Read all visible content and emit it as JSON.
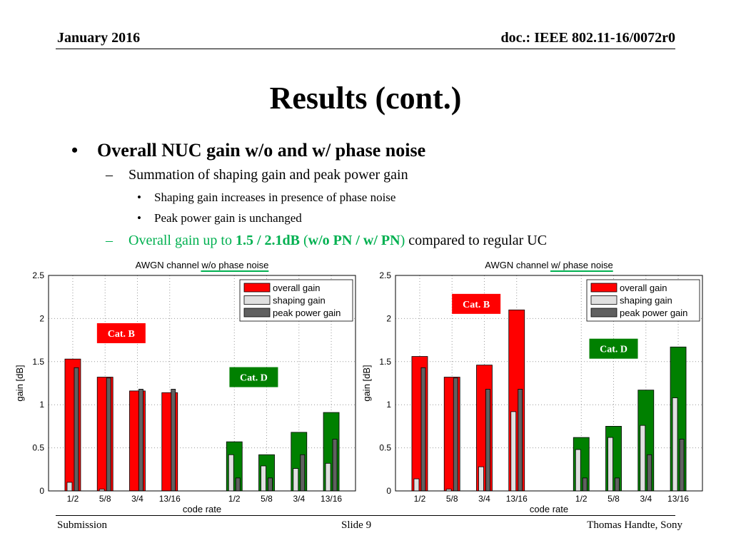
{
  "header": {
    "date": "January 2016",
    "doc": "doc.: IEEE 802.11-16/0072r0"
  },
  "title": "Results (cont.)",
  "bullets": {
    "main": "Overall NUC gain w/o and w/ phase noise",
    "sub1": "Summation of shaping gain and peak power gain",
    "sub1_items": [
      "Shaping gain increases in presence of phase noise",
      "Peak power gain is unchanged"
    ],
    "sub2_prefix": "Overall gain up to ",
    "sub2_value": "1.5 / 2.1dB",
    "sub2_paren_open": " (",
    "sub2_paren_bold": "w/o PN / w/ PN",
    "sub2_paren_close": ")",
    "sub2_suffix": " compared to regular UC"
  },
  "footer": {
    "left": "Submission",
    "center": "Slide 9",
    "right": "Thomas Handte, Sony"
  },
  "colors": {
    "overall_cat_b": "#ff0000",
    "overall_cat_d": "#008000",
    "shaping": "#e0e0e0",
    "peak": "#606060",
    "catb_box": "#ff0000",
    "catd_box": "#008000",
    "underline": "#00b050"
  },
  "chart_data": [
    {
      "type": "bar",
      "title": "AWGN channel w/o phase noise",
      "title_prefix": "AWGN channel ",
      "title_underlined": "w/o phase noise",
      "xlabel": "code rate",
      "ylabel": "gain [dB]",
      "ylim": [
        0,
        2.5
      ],
      "yticks": [
        "0",
        "0.5",
        "1",
        "1.5",
        "2",
        "2.5"
      ],
      "categories": [
        "1/2",
        "5/8",
        "3/4",
        "13/16",
        "",
        "1/2",
        "5/8",
        "3/4",
        "13/16"
      ],
      "legend": {
        "placement": "top-right",
        "entries": [
          "overall gain",
          "shaping gain",
          "peak power gain"
        ]
      },
      "series": [
        {
          "name": "overall gain",
          "values": [
            1.53,
            1.32,
            1.16,
            1.14,
            null,
            0.57,
            0.42,
            0.68,
            0.91
          ]
        },
        {
          "name": "shaping gain",
          "values": [
            0.1,
            0.02,
            0.0,
            0.0,
            null,
            0.42,
            0.29,
            0.26,
            0.32
          ]
        },
        {
          "name": "peak power gain",
          "values": [
            1.43,
            1.31,
            1.18,
            1.18,
            null,
            0.15,
            0.15,
            0.42,
            0.6
          ]
        }
      ],
      "annotations": [
        {
          "text": "Cat. B",
          "kind": "catb",
          "x": 1.5,
          "y": 1.83
        },
        {
          "text": "Cat. D",
          "kind": "catd",
          "x": 5.6,
          "y": 1.32
        }
      ]
    },
    {
      "type": "bar",
      "title": "AWGN channel w/ phase noise",
      "title_prefix": "AWGN channel ",
      "title_underlined": "w/ phase noise",
      "xlabel": "code rate",
      "ylabel": "gain [dB]",
      "ylim": [
        0,
        2.5
      ],
      "yticks": [
        "0",
        "0.5",
        "1",
        "1.5",
        "2",
        "2.5"
      ],
      "categories": [
        "1/2",
        "5/8",
        "3/4",
        "13/16",
        "",
        "1/2",
        "5/8",
        "3/4",
        "13/16"
      ],
      "legend": {
        "placement": "top-right",
        "entries": [
          "overall gain",
          "shaping gain",
          "peak power gain"
        ]
      },
      "series": [
        {
          "name": "overall gain",
          "values": [
            1.56,
            1.32,
            1.46,
            2.1,
            null,
            0.62,
            0.75,
            1.17,
            1.67
          ]
        },
        {
          "name": "shaping gain",
          "values": [
            0.14,
            0.02,
            0.28,
            0.92,
            null,
            0.48,
            0.62,
            0.76,
            1.08
          ]
        },
        {
          "name": "peak power gain",
          "values": [
            1.43,
            1.31,
            1.18,
            1.18,
            null,
            0.15,
            0.15,
            0.42,
            0.6
          ]
        }
      ],
      "annotations": [
        {
          "text": "Cat. B",
          "kind": "catb",
          "x": 1.75,
          "y": 2.17
        },
        {
          "text": "Cat. D",
          "kind": "catd",
          "x": 6.0,
          "y": 1.65
        }
      ]
    }
  ]
}
